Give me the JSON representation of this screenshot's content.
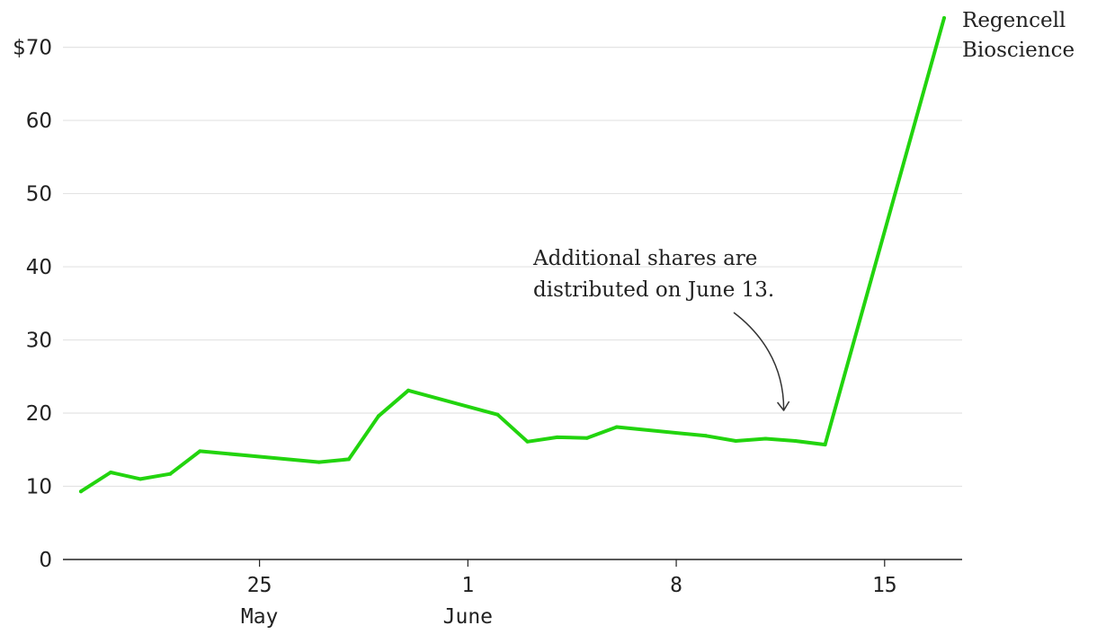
{
  "chart_data": {
    "type": "line",
    "title": "",
    "xlabel": "",
    "ylabel": "",
    "ylim": [
      0,
      74
    ],
    "xlim": [
      "2021-05-19",
      "2021-06-17"
    ],
    "grid": true,
    "y_ticks": [
      {
        "value": 70,
        "label": "$70"
      },
      {
        "value": 60,
        "label": "60"
      },
      {
        "value": 50,
        "label": "50"
      },
      {
        "value": 40,
        "label": "40"
      },
      {
        "value": 30,
        "label": "30"
      },
      {
        "value": 20,
        "label": "20"
      },
      {
        "value": 10,
        "label": "10"
      },
      {
        "value": 0,
        "label": "0"
      }
    ],
    "x_ticks": [
      {
        "date": "2021-05-25",
        "day": "25",
        "month": "May"
      },
      {
        "date": "2021-06-01",
        "day": "1",
        "month": "June"
      },
      {
        "date": "2021-06-08",
        "day": "8",
        "month": ""
      },
      {
        "date": "2021-06-15",
        "day": "15",
        "month": ""
      }
    ],
    "series": [
      {
        "name": "Regencell\nBioscience",
        "color": "#22d40e",
        "x": [
          "2021-05-19",
          "2021-05-20",
          "2021-05-21",
          "2021-05-22",
          "2021-05-23",
          "2021-05-27",
          "2021-05-28",
          "2021-05-29",
          "2021-05-30",
          "2021-06-02",
          "2021-06-03",
          "2021-06-04",
          "2021-06-05",
          "2021-06-06",
          "2021-06-09",
          "2021-06-10",
          "2021-06-11",
          "2021-06-12",
          "2021-06-13",
          "2021-06-17"
        ],
        "values": [
          9.3,
          11.9,
          11.0,
          11.7,
          14.8,
          13.3,
          13.7,
          19.6,
          23.1,
          19.8,
          16.1,
          16.7,
          16.6,
          18.1,
          16.9,
          16.2,
          16.5,
          16.2,
          15.7,
          74.0
        ]
      }
    ],
    "annotations": [
      {
        "text": "Additional shares are\ndistributed on June 13.",
        "target_date": "2021-06-13",
        "target_value": 20.5
      }
    ]
  }
}
